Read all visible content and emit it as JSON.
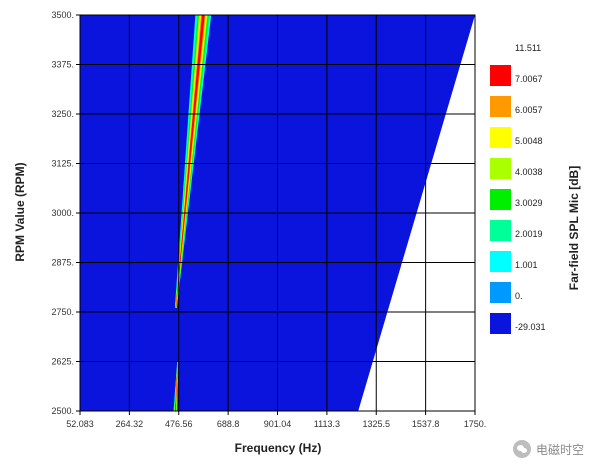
{
  "chart_data": {
    "type": "heatmap",
    "xlabel": "Frequency (Hz)",
    "ylabel": "RPM Value (RPM)",
    "colorbar_label": "Far-field SPL Mic [dB]",
    "x_ticks": [
      "52.083",
      "264.32",
      "476.56",
      "688.8",
      "901.04",
      "1113.3",
      "1325.5",
      "1537.8",
      "1750."
    ],
    "y_ticks": [
      "2500.",
      "2625.",
      "2750.",
      "2875.",
      "3000.",
      "3125.",
      "3250.",
      "3375.",
      "3500."
    ],
    "xlim": [
      52.083,
      1750
    ],
    "ylim": [
      2500,
      3500
    ],
    "grid": true,
    "legend_position": "right",
    "legend_levels": [
      {
        "label": "11.511",
        "color": ""
      },
      {
        "label": "7.0067",
        "color": "#ff0000"
      },
      {
        "label": "6.0057",
        "color": "#ff9900"
      },
      {
        "label": "5.0048",
        "color": "#ffff00"
      },
      {
        "label": "4.0038",
        "color": "#aaff00"
      },
      {
        "label": "3.0029",
        "color": "#00ee00"
      },
      {
        "label": "2.0019",
        "color": "#00ff99"
      },
      {
        "label": "1.001",
        "color": "#00ffff"
      },
      {
        "label": "0.",
        "color": "#0099ff"
      },
      {
        "label": "-29.031",
        "color": "#0a14dc"
      }
    ],
    "background_level_color": "#0a14dc",
    "data_region": {
      "freq_edge_at_min_rpm": 1248,
      "freq_edge_at_max_rpm": 1750,
      "freq_min_at_max_rpm": 52.083,
      "freq_min_at_min_rpm": 52.083
    },
    "ridges": [
      {
        "name": "main-ridge",
        "rpm": [
          2760,
          3500
        ],
        "freq_center": [
          464,
          582
        ],
        "freq_half_width_outer": [
          4,
          34
        ]
      },
      {
        "name": "lower-ridge",
        "rpm": [
          2500,
          2625
        ],
        "freq_center": [
          462,
          472
        ],
        "freq_half_width_outer": [
          8,
          2
        ]
      }
    ]
  },
  "watermark": {
    "text": "电磁时空",
    "icon": "wechat-icon"
  }
}
